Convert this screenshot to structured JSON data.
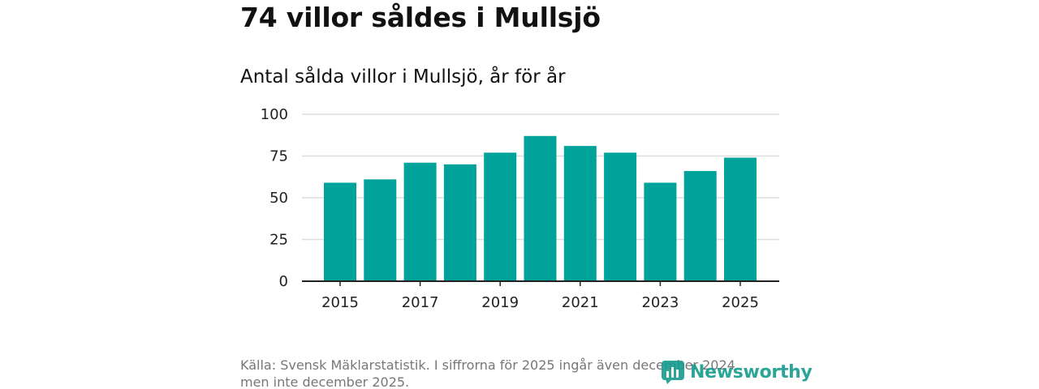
{
  "header": {
    "title": "74 villor såldes i Mullsjö",
    "subtitle": "Antal sålda villor i Mullsjö, år för år"
  },
  "footer": {
    "source_line1": "Källa: Svensk Mäklarstatistik. I siffrorna för 2025 ingår även december 2024",
    "source_line2": "men inte december 2025.",
    "brand": "Newsworthy"
  },
  "colors": {
    "bar": "#00a39a",
    "grid": "#dddddd",
    "axis": "#222222",
    "brand": "#169c8f"
  },
  "chart_data": {
    "type": "bar",
    "title": "Antal sålda villor i Mullsjö, år för år",
    "xlabel": "",
    "ylabel": "",
    "categories": [
      "2015",
      "2016",
      "2017",
      "2018",
      "2019",
      "2020",
      "2021",
      "2022",
      "2023",
      "2024",
      "2025"
    ],
    "values": [
      59,
      61,
      71,
      70,
      77,
      87,
      81,
      77,
      59,
      66,
      74
    ],
    "ylim": [
      0,
      100
    ],
    "yticks": [
      0,
      25,
      50,
      75,
      100
    ],
    "xtick_labels": [
      "2015",
      "2017",
      "2019",
      "2021",
      "2023",
      "2025"
    ],
    "grid": true,
    "legend": "none"
  }
}
